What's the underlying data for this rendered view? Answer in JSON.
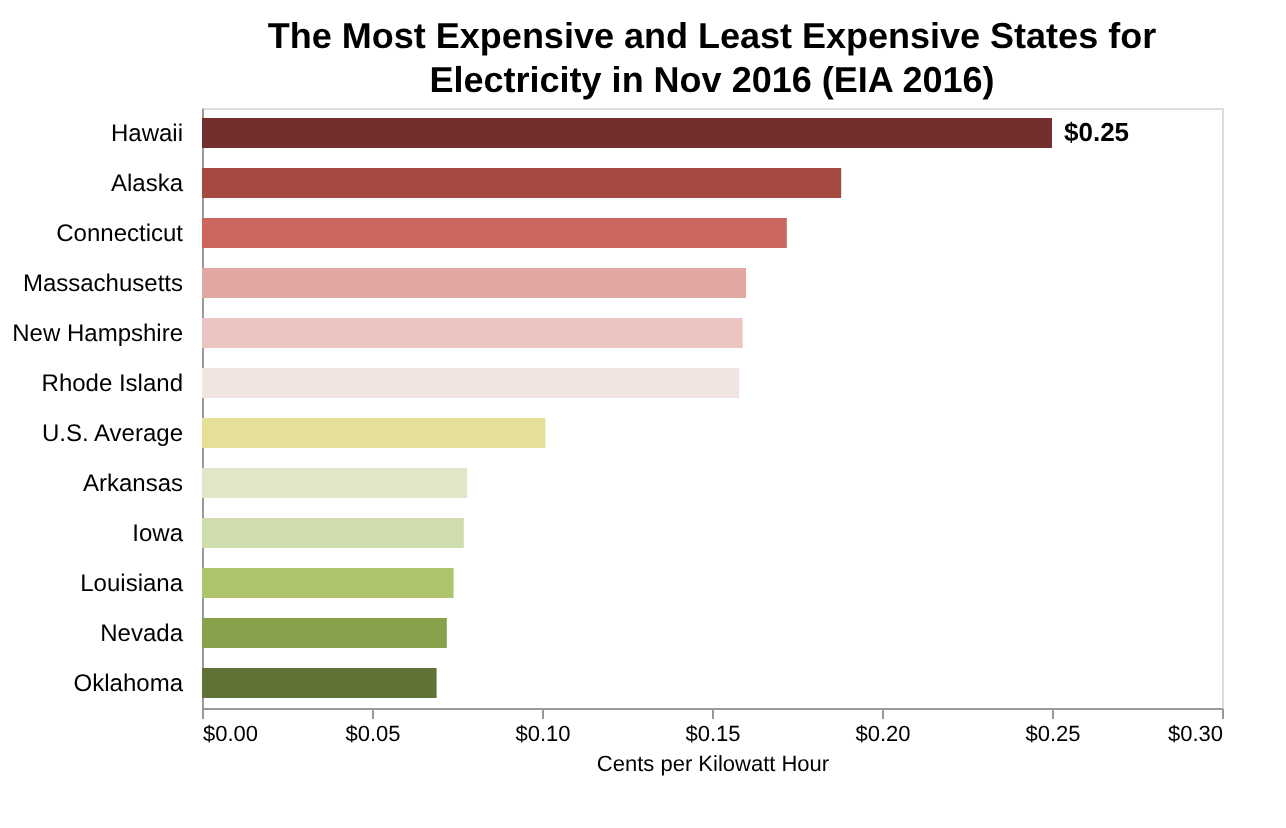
{
  "chart_data": {
    "type": "bar",
    "orientation": "horizontal",
    "title": "The Most Expensive and Least Expensive States for Electricity in Nov 2016 (EIA 2016)",
    "xlabel": "Cents per Kilowatt Hour",
    "categories": [
      "Hawaii",
      "Alaska",
      "Connecticut",
      "Massachusetts",
      "New Hampshire",
      "Rhode Island",
      "U.S. Average",
      "Arkansas",
      "Iowa",
      "Louisiana",
      "Nevada",
      "Oklahoma"
    ],
    "values": [
      0.25,
      0.188,
      0.172,
      0.16,
      0.159,
      0.158,
      0.101,
      0.078,
      0.077,
      0.074,
      0.072,
      0.069
    ],
    "colors": [
      "#722f2d",
      "#a44a42",
      "#cc665e",
      "#e0a7a3",
      "#ebc5c1",
      "#f1e3e0",
      "#e6df98",
      "#e0e6c7",
      "#cfdcad",
      "#adc46a",
      "#87a04a",
      "#5f7337"
    ],
    "value_labels": [
      "$0.25",
      null,
      null,
      null,
      null,
      null,
      null,
      null,
      null,
      null,
      null,
      null
    ],
    "xlim": [
      0,
      0.3
    ],
    "xticks": [
      {
        "value": 0,
        "label": "$0.00"
      },
      {
        "value": 0.05,
        "label": "$0.05"
      },
      {
        "value": 0.1,
        "label": "$0.10"
      },
      {
        "value": 0.15,
        "label": "$0.15"
      },
      {
        "value": 0.2,
        "label": "$0.20"
      },
      {
        "value": 0.25,
        "label": "$0.25"
      },
      {
        "value": 0.3,
        "label": "$0.30"
      }
    ],
    "grid": false
  }
}
